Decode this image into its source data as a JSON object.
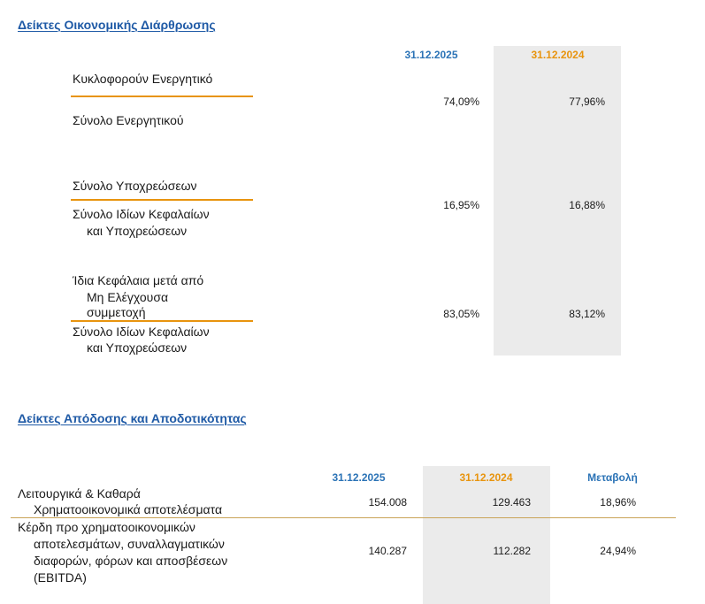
{
  "section1": {
    "title": "Δείκτες Οικονομικής Διάρθρωσης",
    "columns": [
      "31.12.2025",
      "31.12.2024"
    ],
    "ratios": [
      {
        "numerator": "Κυκλοφορούν Ενεργητικό",
        "denominator": "Σύνολο Ενεργητικού",
        "values": [
          "74,09%",
          "77,96%"
        ]
      },
      {
        "numerator": "Σύνολο Υποχρεώσεων",
        "denominator_line1": "Σύνολο Ιδίων Κεφαλαίων",
        "denominator_line2": "και Υποχρεώσεων",
        "values": [
          "16,95%",
          "16,88%"
        ]
      },
      {
        "numerator_line1": "Ίδια Κεφάλαια μετά από",
        "numerator_line2": "Μη Ελέγχουσα",
        "numerator_line3": "συμμετοχή",
        "denominator_line1": "Σύνολο Ιδίων Κεφαλαίων",
        "denominator_line2": "και Υποχρεώσεων",
        "values": [
          "83,05%",
          "83,12%"
        ]
      }
    ]
  },
  "section2": {
    "title": "Δείκτες Απόδοσης και Αποδοτικότητας",
    "columns": [
      "31.12.2025",
      "31.12.2024",
      "Μεταβολή"
    ],
    "rows": [
      {
        "label_line1": "Λειτουργικά & Καθαρά",
        "label_line2": "Χρηματοοικονομικά αποτελέσματα",
        "values": [
          "154.008",
          "129.463",
          "18,96%"
        ]
      },
      {
        "label_line1": "Κέρδη προ χρηματοοικονομικών",
        "label_line2": "αποτελεσμάτων, συναλλαγματικών",
        "label_line3": "διαφορών, φόρων και αποσβέσεων",
        "label_line4": "(EBITDA)",
        "values": [
          "140.287",
          "112.282",
          "24,94%"
        ]
      }
    ]
  },
  "colors": {
    "heading_blue": "#1f5aa6",
    "col_blue": "#2b73b6",
    "col_orange": "#e8940e",
    "grey_column": "#ebebeb"
  }
}
